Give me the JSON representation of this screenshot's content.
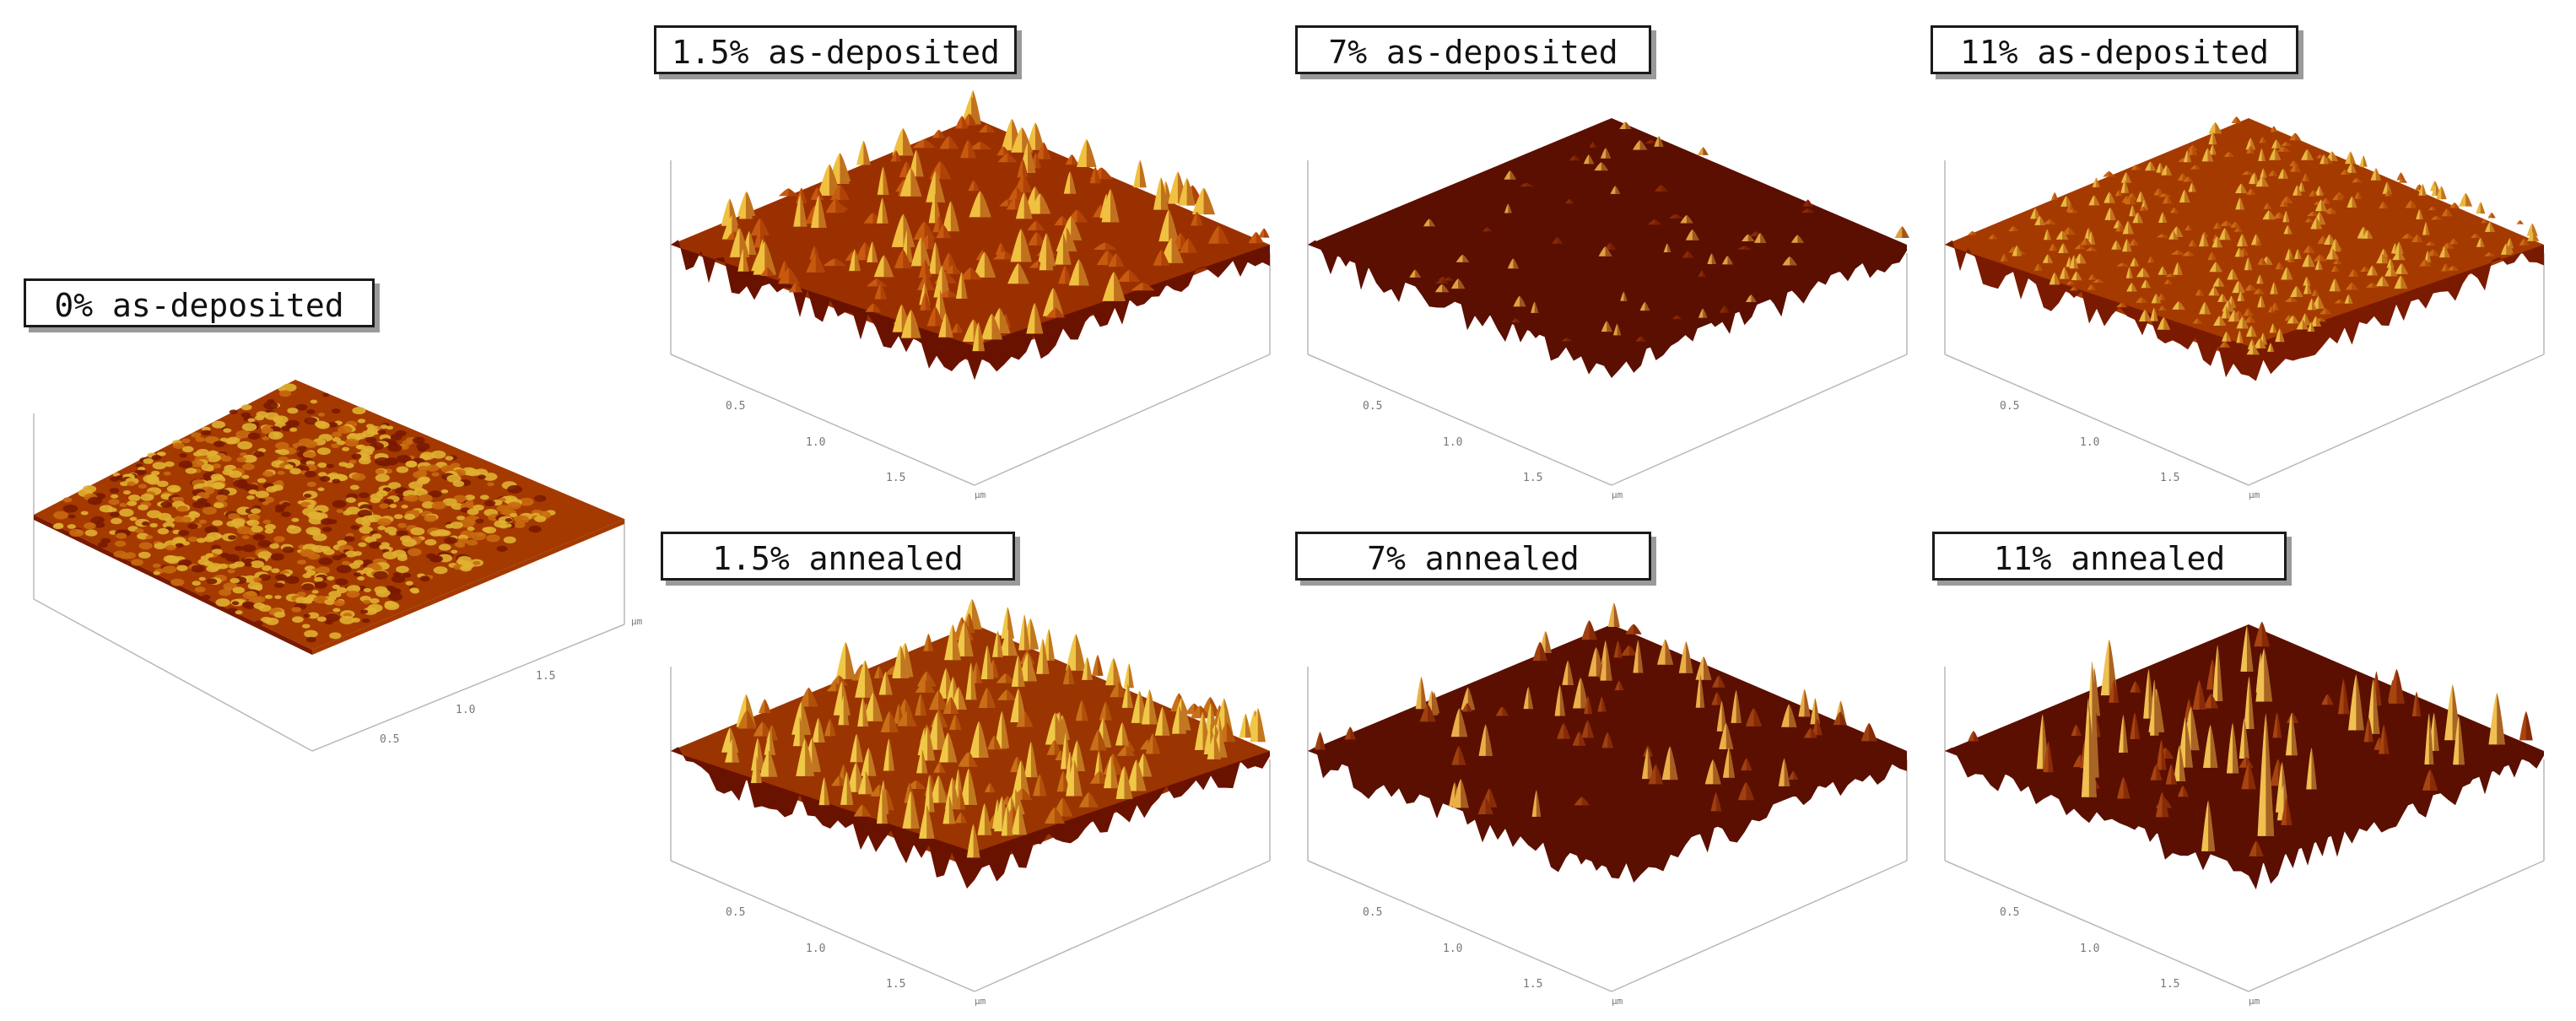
{
  "panels": [
    {
      "id": "p0",
      "label": "0% as-deposited",
      "ticks": [
        "0.5",
        "1.0",
        "1.5"
      ],
      "unit": "µm",
      "palette": [
        "#7a1a00",
        "#a43a00",
        "#c86a10",
        "#e0b030"
      ]
    },
    {
      "id": "p1",
      "label": "1.5% as-deposited",
      "ticks": [
        "0.5",
        "1.0",
        "1.5"
      ],
      "unit": "µm",
      "palette": [
        "#6a1200",
        "#9a3000",
        "#c85a10",
        "#f0c040"
      ]
    },
    {
      "id": "p2",
      "label": "7% as-deposited",
      "ticks": [
        "0.5",
        "1.0",
        "1.5"
      ],
      "unit": "µm",
      "palette": [
        "#5a0f00",
        "#6e1800",
        "#8a2a05",
        "#e0a040"
      ]
    },
    {
      "id": "p3",
      "label": "11% as-deposited",
      "ticks": [
        "0.5",
        "1.0",
        "1.5"
      ],
      "unit": "µm",
      "palette": [
        "#7a1a00",
        "#a43a00",
        "#cc6a14",
        "#e8b840"
      ]
    },
    {
      "id": "p4",
      "label": "1.5% annealed",
      "ticks": [
        "0.5",
        "1.0",
        "1.5"
      ],
      "unit": "µm",
      "palette": [
        "#6a1200",
        "#9a3400",
        "#c87018",
        "#f0c848"
      ]
    },
    {
      "id": "p5",
      "label": "7% annealed",
      "ticks": [
        "0.5",
        "1.0",
        "1.5"
      ],
      "unit": "µm",
      "palette": [
        "#5a0f00",
        "#701a02",
        "#a04010",
        "#eab048"
      ]
    },
    {
      "id": "p6",
      "label": "11% annealed",
      "ticks": [
        "0.5",
        "1.0",
        "1.5"
      ],
      "unit": "µm",
      "palette": [
        "#5a0f00",
        "#6e1800",
        "#a84410",
        "#f0c050"
      ]
    }
  ]
}
